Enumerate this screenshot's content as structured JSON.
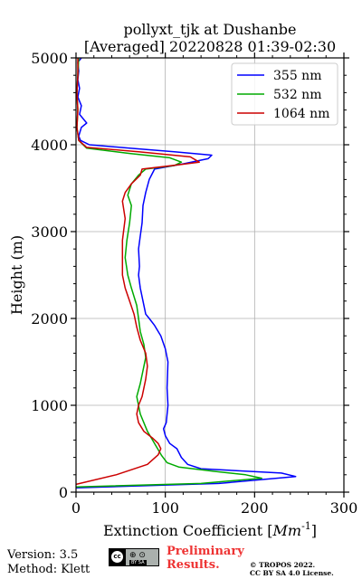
{
  "chart_data": {
    "type": "line",
    "title_line1": "pollyxt_tjk at Dushanbe",
    "title_line2": "[Averaged] 20220828 01:39-02:30",
    "xlabel_prefix": "Extinction Coefficient [",
    "xlabel_unit": "Mm",
    "xlabel_exp": "-1",
    "xlabel_suffix": "]",
    "ylabel": "Height (m)",
    "xlim": [
      0,
      300
    ],
    "ylim": [
      0,
      5000
    ],
    "xticks": [
      0,
      100,
      200,
      300
    ],
    "yticks": [
      0,
      1000,
      2000,
      3000,
      4000,
      5000
    ],
    "grid": true,
    "legend_position": "top-right",
    "series": [
      {
        "name": "355 nm",
        "color": "#0000ff",
        "points": [
          [
            0,
            50
          ],
          [
            160,
            100
          ],
          [
            246,
            180
          ],
          [
            230,
            220
          ],
          [
            140,
            270
          ],
          [
            125,
            320
          ],
          [
            118,
            400
          ],
          [
            113,
            500
          ],
          [
            105,
            560
          ],
          [
            100,
            650
          ],
          [
            98,
            730
          ],
          [
            101,
            800
          ],
          [
            103,
            1000
          ],
          [
            102,
            1200
          ],
          [
            103,
            1500
          ],
          [
            100,
            1650
          ],
          [
            95,
            1800
          ],
          [
            88,
            1920
          ],
          [
            82,
            2000
          ],
          [
            78,
            2050
          ],
          [
            75,
            2200
          ],
          [
            72,
            2350
          ],
          [
            70,
            2500
          ],
          [
            71,
            2600
          ],
          [
            70,
            2800
          ],
          [
            72,
            2950
          ],
          [
            74,
            3100
          ],
          [
            75,
            3300
          ],
          [
            78,
            3450
          ],
          [
            82,
            3600
          ],
          [
            88,
            3720
          ],
          [
            120,
            3780
          ],
          [
            148,
            3840
          ],
          [
            152,
            3880
          ],
          [
            110,
            3920
          ],
          [
            60,
            3960
          ],
          [
            15,
            4000
          ],
          [
            5,
            4050
          ],
          [
            3,
            4100
          ],
          [
            6,
            4200
          ],
          [
            12,
            4250
          ],
          [
            4,
            4350
          ],
          [
            6,
            4450
          ],
          [
            2,
            4550
          ],
          [
            4,
            4650
          ],
          [
            2,
            4750
          ],
          [
            3,
            4850
          ],
          [
            2,
            4950
          ],
          [
            6,
            5000
          ]
        ]
      },
      {
        "name": "532 nm",
        "color": "#00aa00",
        "points": [
          [
            0,
            60
          ],
          [
            140,
            100
          ],
          [
            208,
            160
          ],
          [
            190,
            200
          ],
          [
            155,
            240
          ],
          [
            115,
            290
          ],
          [
            102,
            340
          ],
          [
            96,
            420
          ],
          [
            88,
            560
          ],
          [
            80,
            700
          ],
          [
            72,
            900
          ],
          [
            68,
            1100
          ],
          [
            72,
            1250
          ],
          [
            75,
            1400
          ],
          [
            78,
            1550
          ],
          [
            76,
            1700
          ],
          [
            72,
            1850
          ],
          [
            70,
            2000
          ],
          [
            68,
            2150
          ],
          [
            62,
            2350
          ],
          [
            58,
            2500
          ],
          [
            55,
            2700
          ],
          [
            57,
            2900
          ],
          [
            60,
            3100
          ],
          [
            62,
            3300
          ],
          [
            58,
            3420
          ],
          [
            62,
            3550
          ],
          [
            70,
            3650
          ],
          [
            78,
            3720
          ],
          [
            110,
            3760
          ],
          [
            118,
            3800
          ],
          [
            105,
            3850
          ],
          [
            60,
            3900
          ],
          [
            12,
            3960
          ],
          [
            3,
            4050
          ],
          [
            1,
            4200
          ],
          [
            2,
            4400
          ],
          [
            1,
            4600
          ],
          [
            2,
            4800
          ],
          [
            3,
            5000
          ]
        ]
      },
      {
        "name": "1064 nm",
        "color": "#cc0000",
        "points": [
          [
            0,
            90
          ],
          [
            45,
            200
          ],
          [
            80,
            320
          ],
          [
            92,
            430
          ],
          [
            95,
            500
          ],
          [
            92,
            560
          ],
          [
            86,
            620
          ],
          [
            76,
            700
          ],
          [
            70,
            800
          ],
          [
            68,
            900
          ],
          [
            70,
            1000
          ],
          [
            74,
            1100
          ],
          [
            76,
            1200
          ],
          [
            78,
            1300
          ],
          [
            80,
            1450
          ],
          [
            78,
            1600
          ],
          [
            72,
            1750
          ],
          [
            68,
            1900
          ],
          [
            65,
            2050
          ],
          [
            60,
            2200
          ],
          [
            55,
            2350
          ],
          [
            52,
            2500
          ],
          [
            52,
            2700
          ],
          [
            52,
            2900
          ],
          [
            55,
            3150
          ],
          [
            52,
            3350
          ],
          [
            55,
            3450
          ],
          [
            62,
            3550
          ],
          [
            72,
            3650
          ],
          [
            74,
            3720
          ],
          [
            115,
            3770
          ],
          [
            138,
            3800
          ],
          [
            128,
            3860
          ],
          [
            70,
            3920
          ],
          [
            12,
            3970
          ],
          [
            3,
            4050
          ],
          [
            1,
            4200
          ],
          [
            2,
            4400
          ],
          [
            1,
            4600
          ],
          [
            2,
            4800
          ],
          [
            2,
            5000
          ]
        ]
      }
    ]
  },
  "footer": {
    "version": "Version: 3.5",
    "method": "Method: Klett",
    "preliminary_line1": "Preliminary",
    "preliminary_line2": "Results.",
    "copyright_line1": "© TROPOS 2022.",
    "copyright_line2": "CC BY SA 4.0 License."
  },
  "license_badge": {
    "cc_mark": "cc",
    "icons": "⊕ ⊙",
    "sub": "BY  SA"
  }
}
